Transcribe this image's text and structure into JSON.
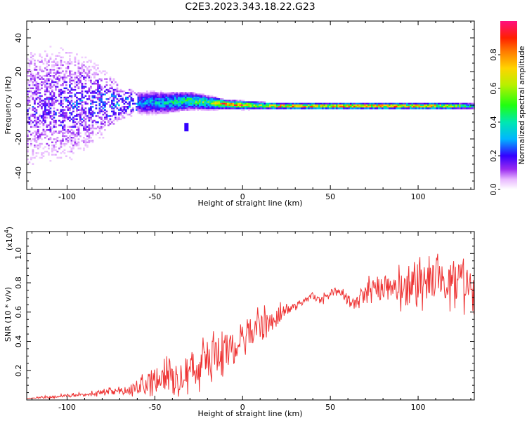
{
  "title": "C2E3.2023.343.18.22.G23",
  "colors": {
    "snr_line": "#ee3333",
    "axis": "#000000"
  },
  "spectrogram": {
    "xlabel": "Height of straight line (km)",
    "ylabel": "Frequency (Hz)",
    "xlim": [
      -123,
      132
    ],
    "ylim": [
      -50,
      50
    ],
    "xticks": [
      -100,
      -50,
      0,
      50,
      100
    ],
    "yticks": [
      -40,
      -20,
      0,
      20,
      40
    ],
    "xtick_labels": [
      "-100",
      "-50",
      "0",
      "50",
      "100"
    ],
    "ytick_labels": [
      "-40",
      "-20",
      "0",
      "20",
      "40"
    ],
    "colorbar_label": "Normalized spectral amplitude",
    "colorbar_range": [
      0,
      1
    ],
    "colorbar_ticks": [
      0,
      0.2,
      0.4,
      0.6,
      0.8
    ],
    "colorbar_tick_labels": [
      "0.0",
      "0.2",
      "0.4",
      "0.6",
      "0.8"
    ]
  },
  "chart_data": [
    {
      "type": "heatmap",
      "title": "C2E3.2023.343.18.22.G23",
      "xlabel": "Height of straight line (km)",
      "ylabel": "Frequency (Hz)",
      "xlim": [
        -123,
        132
      ],
      "ylim": [
        -50,
        50
      ],
      "colorbar": "Normalized spectral amplitude",
      "band_center_hz": [
        [
          -120,
          0
        ],
        [
          -100,
          1
        ],
        [
          -80,
          2
        ],
        [
          -60,
          2
        ],
        [
          -45,
          2
        ],
        [
          -30,
          3
        ],
        [
          -20,
          2
        ],
        [
          -10,
          1
        ],
        [
          0,
          0.5
        ],
        [
          20,
          0
        ],
        [
          50,
          0
        ],
        [
          80,
          0
        ],
        [
          100,
          0
        ],
        [
          132,
          0
        ]
      ],
      "band_halfwidth_hz": [
        [
          -120,
          45
        ],
        [
          -100,
          40
        ],
        [
          -80,
          25
        ],
        [
          -70,
          12
        ],
        [
          -60,
          8
        ],
        [
          -50,
          8
        ],
        [
          -40,
          7
        ],
        [
          -30,
          6
        ],
        [
          -20,
          5
        ],
        [
          -10,
          3
        ],
        [
          0,
          3
        ],
        [
          20,
          2
        ],
        [
          50,
          2
        ],
        [
          100,
          2
        ],
        [
          132,
          2
        ]
      ],
      "peak_amplitude": [
        [
          -120,
          0.15
        ],
        [
          -100,
          0.2
        ],
        [
          -80,
          0.22
        ],
        [
          -60,
          0.35
        ],
        [
          -45,
          0.45
        ],
        [
          -30,
          0.6
        ],
        [
          -20,
          0.6
        ],
        [
          -12,
          0.95
        ],
        [
          0,
          0.9
        ],
        [
          10,
          0.7
        ],
        [
          20,
          1.0
        ],
        [
          60,
          1.0
        ],
        [
          110,
          1.0
        ],
        [
          132,
          0.5
        ]
      ],
      "disturbance_spot": {
        "x": -32,
        "y": -13
      }
    },
    {
      "type": "line",
      "title": "",
      "xlabel": "Height of straight line (km)",
      "ylabel": "SNR (10 * v/v)",
      "y_multiplier_label": "(x10",
      "y_multiplier_exponent": "4",
      "y_multiplier_close": ")",
      "xlim": [
        -123,
        132
      ],
      "ylim": [
        0,
        1.15
      ],
      "xticks": [
        -100,
        -50,
        0,
        50,
        100
      ],
      "xtick_labels": [
        "-100",
        "-50",
        "0",
        "50",
        "100"
      ],
      "yticks": [
        0.2,
        0.4,
        0.6,
        0.8,
        1.0
      ],
      "ytick_labels": [
        "0.2",
        "0.4",
        "0.6",
        "0.8",
        "1.0"
      ],
      "series": [
        {
          "color": "#ee3333",
          "x": [
            -123,
            -110,
            -100,
            -90,
            -80,
            -70,
            -60,
            -55,
            -50,
            -45,
            -40,
            -35,
            -30,
            -25,
            -20,
            -15,
            -10,
            -5,
            0,
            5,
            10,
            15,
            20,
            25,
            30,
            35,
            40,
            45,
            50,
            55,
            60,
            65,
            70,
            75,
            80,
            85,
            90,
            95,
            100,
            105,
            110,
            115,
            120,
            125,
            132
          ],
          "y": [
            0.01,
            0.02,
            0.03,
            0.04,
            0.05,
            0.06,
            0.08,
            0.11,
            0.14,
            0.14,
            0.17,
            0.2,
            0.21,
            0.23,
            0.27,
            0.29,
            0.33,
            0.37,
            0.42,
            0.47,
            0.5,
            0.52,
            0.57,
            0.62,
            0.65,
            0.67,
            0.71,
            0.67,
            0.73,
            0.75,
            0.68,
            0.66,
            0.72,
            0.78,
            0.76,
            0.79,
            0.76,
            0.74,
            0.82,
            0.78,
            0.82,
            0.8,
            0.77,
            0.8,
            0.72
          ],
          "noise_amplitude": [
            0.0,
            0.01,
            0.01,
            0.01,
            0.02,
            0.02,
            0.04,
            0.06,
            0.09,
            0.09,
            0.1,
            0.11,
            0.12,
            0.12,
            0.13,
            0.13,
            0.13,
            0.12,
            0.12,
            0.09,
            0.1,
            0.09,
            0.07,
            0.04,
            0.03,
            0.02,
            0.02,
            0.03,
            0.03,
            0.02,
            0.04,
            0.05,
            0.07,
            0.08,
            0.09,
            0.1,
            0.11,
            0.12,
            0.12,
            0.12,
            0.12,
            0.12,
            0.13,
            0.14,
            0.15
          ]
        }
      ]
    }
  ]
}
